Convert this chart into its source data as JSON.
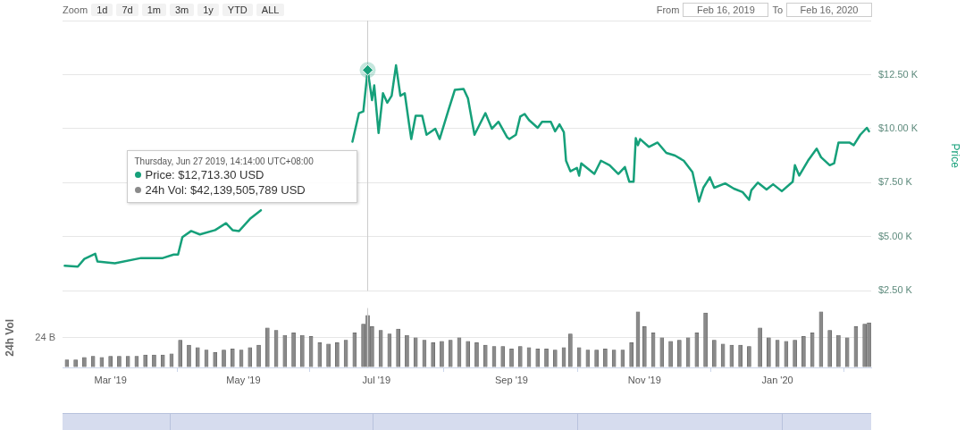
{
  "chart_data": [
    {
      "type": "other",
      "annotations": [
        "Zoom",
        "1d",
        "7d",
        "1m",
        "3m",
        "1y",
        "YTD",
        "ALL",
        "From",
        "Feb 16, 2019",
        "To",
        "Feb 16, 2020"
      ]
    },
    {
      "type": "line",
      "ylabel": "Price",
      "xlim": [
        "2019-02-07",
        "2020-02-13"
      ],
      "ylim": [
        2500,
        15000
      ],
      "yticks": [
        {
          "value": 2500,
          "label": "$2.50 K"
        },
        {
          "value": 5000,
          "label": "$5.00 K"
        },
        {
          "value": 7500,
          "label": "$7.50 K"
        },
        {
          "value": 10000,
          "label": "$10.00 K"
        },
        {
          "value": 12500,
          "label": "$12.50 K"
        },
        {
          "value": 15000,
          "label": null
        }
      ],
      "grid": "y",
      "tick_labels": "y",
      "series": [
        {
          "color": "#16a07a",
          "x": [
            "2019-02-08",
            "2019-02-14",
            "2019-02-17",
            "2019-02-22",
            "2019-02-23",
            "2019-03-03",
            "2019-03-15",
            "2019-03-25",
            "2019-03-30",
            "2019-04-01",
            "2019-04-03",
            "2019-04-07",
            "2019-04-11",
            "2019-04-18",
            "2019-04-23",
            "2019-04-26",
            "2019-04-29",
            "2019-05-04",
            "2019-05-09",
            "2019-05-14",
            "2019-05-20",
            "2019-05-27",
            "2019-06-03",
            "2019-06-10",
            "2019-06-17",
            "2019-06-20",
            "2019-06-23",
            "2019-06-25",
            "2019-06-27",
            "2019-06-29",
            "2019-06-30",
            "2019-07-02",
            "2019-07-04",
            "2019-07-06",
            "2019-07-08",
            "2019-07-10",
            "2019-07-12",
            "2019-07-14",
            "2019-07-16",
            "2019-07-17",
            "2019-07-19",
            "2019-07-22",
            "2019-07-24",
            "2019-07-28",
            "2019-07-30",
            "2019-08-03",
            "2019-08-06",
            "2019-08-10",
            "2019-08-12",
            "2019-08-15",
            "2019-08-20",
            "2019-08-23",
            "2019-08-26",
            "2019-08-30",
            "2019-08-31",
            "2019-09-03",
            "2019-09-05",
            "2019-09-07",
            "2019-09-09",
            "2019-09-13",
            "2019-09-15",
            "2019-09-19",
            "2019-09-21",
            "2019-09-23",
            "2019-09-25",
            "2019-09-26",
            "2019-09-28",
            "2019-10-01",
            "2019-10-02",
            "2019-10-03",
            "2019-10-09",
            "2019-10-12",
            "2019-10-16",
            "2019-10-20",
            "2019-10-23",
            "2019-10-25",
            "2019-10-27",
            "2019-10-28",
            "2019-10-29",
            "2019-10-30",
            "2019-11-03",
            "2019-11-07",
            "2019-11-11",
            "2019-11-15",
            "2019-11-19",
            "2019-11-23",
            "2019-11-26",
            "2019-11-28",
            "2019-12-01",
            "2019-12-03",
            "2019-12-08",
            "2019-12-12",
            "2019-12-16",
            "2019-12-19",
            "2019-12-20",
            "2019-12-23",
            "2019-12-27",
            "2019-12-30",
            "2020-01-03",
            "2020-01-08",
            "2020-01-09",
            "2020-01-11",
            "2020-01-15",
            "2020-01-19",
            "2020-01-21",
            "2020-01-25",
            "2020-01-27",
            "2020-01-29",
            "2020-02-03",
            "2020-02-05",
            "2020-02-08",
            "2020-02-11",
            "2020-02-12"
          ],
          "values": [
            3660,
            3620,
            3980,
            4220,
            3860,
            3780,
            4020,
            4020,
            4180,
            4180,
            4990,
            5270,
            5110,
            5310,
            5630,
            5310,
            5270,
            5830,
            6230,
            null,
            null,
            null,
            null,
            null,
            null,
            9400,
            10720,
            10800,
            12713.3,
            11320,
            12000,
            9800,
            11640,
            11200,
            11520,
            12930,
            11520,
            11640,
            10200,
            9520,
            10600,
            10600,
            9720,
            10000,
            9520,
            10840,
            11800,
            11840,
            11400,
            9720,
            10720,
            10000,
            10320,
            9600,
            9520,
            9720,
            10560,
            10680,
            10400,
            10040,
            10320,
            10320,
            9880,
            10200,
            9840,
            8520,
            8030,
            8190,
            7830,
            8400,
            7910,
            8520,
            8310,
            7910,
            8230,
            7550,
            7550,
            9560,
            9240,
            9520,
            9160,
            9360,
            8880,
            8760,
            8520,
            7990,
            6630,
            7270,
            7750,
            7270,
            7470,
            7230,
            7070,
            6710,
            7150,
            7510,
            7190,
            7430,
            7110,
            7550,
            8310,
            7830,
            8520,
            9080,
            8680,
            8310,
            8400,
            9360,
            9360,
            9240,
            9720,
            10040,
            9880
          ]
        }
      ],
      "ref_lines": [
        {
          "axis": "x",
          "value": "2019-06-27",
          "color": "#cccccc"
        }
      ],
      "annotations": [
        "Thursday, Jun 27 2019, 14:14:00 UTC+08:00",
        "Price: $12,713.30 USD",
        "24h Vol: $42,139,505,789 USD"
      ]
    },
    {
      "type": "bar",
      "ylabel": "24h Vol",
      "xlim": [
        "2019-02-07",
        "2020-02-13"
      ],
      "ylim": [
        0,
        48
      ],
      "yticks": [
        0,
        {
          "value": 24,
          "label": "24 B"
        }
      ],
      "xticks": [
        {
          "value": "2019-03-01",
          "label": "Mar '19"
        },
        {
          "value": "2019-05-01",
          "label": "May '19"
        },
        {
          "value": "2019-07-01",
          "label": "Jul '19"
        },
        {
          "value": "2019-09-01",
          "label": "Sep '19"
        },
        {
          "value": "2019-11-01",
          "label": "Nov '19"
        },
        {
          "value": "2020-01-01",
          "label": "Jan '20"
        }
      ],
      "grid": "y",
      "series": [
        {
          "color": "#8a8a8a",
          "x": [
            "2019-02-09",
            "2019-02-13",
            "2019-02-17",
            "2019-02-21",
            "2019-02-25",
            "2019-03-01",
            "2019-03-05",
            "2019-03-09",
            "2019-03-13",
            "2019-03-17",
            "2019-03-21",
            "2019-03-25",
            "2019-03-29",
            "2019-04-02",
            "2019-04-06",
            "2019-04-10",
            "2019-04-14",
            "2019-04-18",
            "2019-04-22",
            "2019-04-26",
            "2019-04-30",
            "2019-05-04",
            "2019-05-08",
            "2019-05-12",
            "2019-05-16",
            "2019-05-20",
            "2019-05-24",
            "2019-05-28",
            "2019-06-01",
            "2019-06-05",
            "2019-06-09",
            "2019-06-13",
            "2019-06-17",
            "2019-06-21",
            "2019-06-25",
            "2019-06-27",
            "2019-06-29",
            "2019-07-03",
            "2019-07-07",
            "2019-07-11",
            "2019-07-15",
            "2019-07-19",
            "2019-07-23",
            "2019-07-27",
            "2019-07-31",
            "2019-08-04",
            "2019-08-08",
            "2019-08-12",
            "2019-08-16",
            "2019-08-20",
            "2019-08-24",
            "2019-08-28",
            "2019-09-01",
            "2019-09-05",
            "2019-09-09",
            "2019-09-13",
            "2019-09-17",
            "2019-09-21",
            "2019-09-25",
            "2019-09-28",
            "2019-10-02",
            "2019-10-06",
            "2019-10-10",
            "2019-10-14",
            "2019-10-18",
            "2019-10-22",
            "2019-10-26",
            "2019-10-29",
            "2019-11-01",
            "2019-11-05",
            "2019-11-09",
            "2019-11-13",
            "2019-11-17",
            "2019-11-21",
            "2019-11-25",
            "2019-11-29",
            "2019-12-03",
            "2019-12-07",
            "2019-12-11",
            "2019-12-15",
            "2019-12-19",
            "2019-12-24",
            "2019-12-28",
            "2020-01-01",
            "2020-01-05",
            "2020-01-09",
            "2020-01-13",
            "2020-01-17",
            "2020-01-21",
            "2020-01-25",
            "2020-01-29",
            "2020-02-02",
            "2020-02-06",
            "2020-02-10",
            "2020-02-12"
          ],
          "values": [
            6,
            6,
            8,
            9,
            8,
            9,
            9,
            9,
            9,
            10,
            10,
            10,
            11,
            22,
            18,
            16,
            14,
            12,
            14,
            15,
            14,
            16,
            18,
            32,
            30,
            26,
            28,
            26,
            25,
            20,
            19,
            20,
            22,
            28,
            35,
            42.1,
            33,
            30,
            27,
            31,
            26,
            24,
            22,
            20,
            21,
            22,
            24,
            21,
            20,
            18,
            17,
            17,
            15,
            17,
            16,
            15,
            15,
            14,
            16,
            27,
            16,
            14,
            14,
            15,
            14,
            14,
            20,
            45,
            33,
            28,
            24,
            21,
            22,
            24,
            28,
            44,
            22,
            19,
            18,
            18,
            17,
            32,
            24,
            22,
            21,
            22,
            25,
            28,
            45,
            30,
            26,
            24,
            33,
            35,
            36
          ]
        }
      ],
      "ref_lines": [
        {
          "axis": "x",
          "value": "2019-06-27",
          "color": "#cccccc"
        }
      ]
    }
  ]
}
